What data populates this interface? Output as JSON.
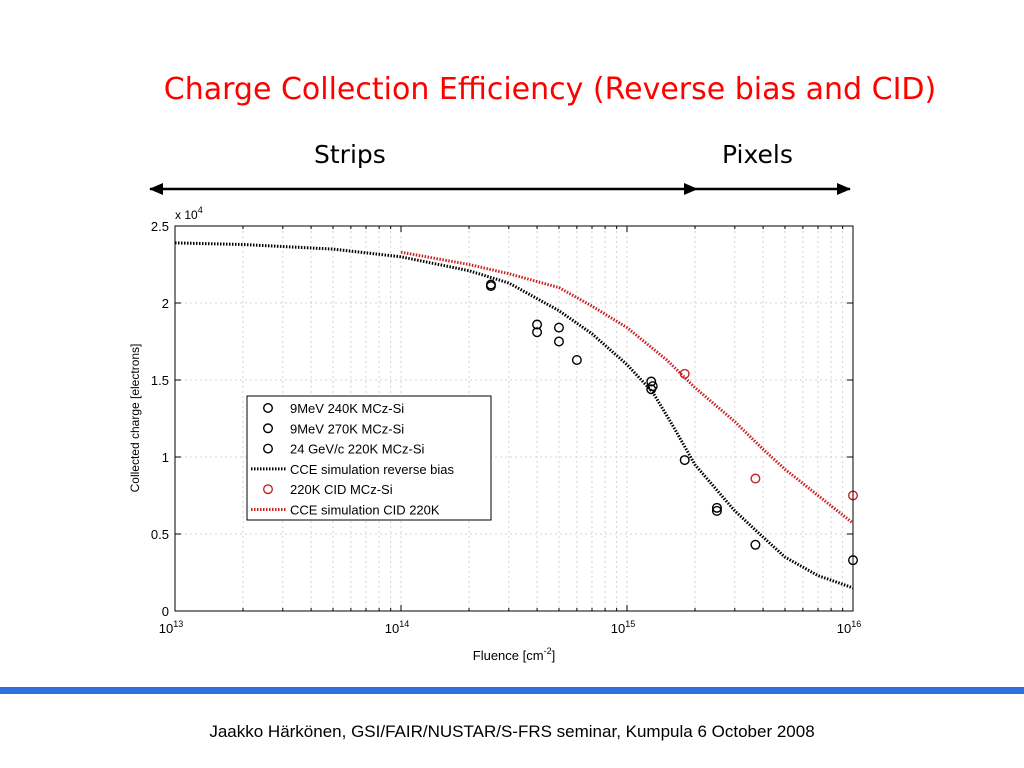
{
  "slide": {
    "title": "Charge Collection Efficiency (Reverse bias and CID)",
    "range_left": "Strips",
    "range_right": "Pixels",
    "footer": "Jaakko Härkönen, GSI/FAIR/NUSTAR/S-FRS seminar, Kumpula 6 October 2008",
    "accent_color": "#2f6fe0"
  },
  "chart_data": {
    "type": "scatter",
    "title": "",
    "xlabel_base": "Fluence [cm",
    "xlabel_sup": "-2",
    "xlabel_end": "]",
    "ylabel": "Collected charge [electrons]",
    "x_scale": "log",
    "xlim": [
      10000000000000.0,
      1e+16
    ],
    "ylim": [
      0,
      25000
    ],
    "y_multiplier_base": "x 10",
    "y_multiplier_exp": "4",
    "y_ticks": [
      0,
      5000,
      10000,
      15000,
      20000,
      25000
    ],
    "y_tick_labels": [
      "0",
      "0.5",
      "1",
      "1.5",
      "2",
      "2.5"
    ],
    "x_ticks": [
      10000000000000.0,
      100000000000000.0,
      1000000000000000.0,
      1e+16
    ],
    "x_tick_base": "10",
    "x_tick_exps": [
      "13",
      "14",
      "15",
      "16"
    ],
    "grid": true,
    "legend_position": "lower-left",
    "series": [
      {
        "name": "9MeV 240K MCz-Si",
        "kind": "points",
        "color": "#000000",
        "x": [
          250000000000000.0,
          400000000000000.0,
          500000000000000.0,
          1280000000000000.0,
          1800000000000000.0,
          2500000000000000.0,
          3700000000000000.0,
          1e+16
        ],
        "y": [
          21100,
          18100,
          17500,
          14400,
          9800,
          6500,
          4300,
          3300
        ]
      },
      {
        "name": "9MeV 270K MCz-Si",
        "kind": "points",
        "color": "#000000",
        "x": [
          400000000000000.0,
          500000000000000.0,
          600000000000000.0,
          1280000000000000.0,
          2500000000000000.0
        ],
        "y": [
          18600,
          18400,
          16300,
          14900,
          6700
        ]
      },
      {
        "name": "24 GeV/c 220K MCz-Si",
        "kind": "points",
        "color": "#000000",
        "x": [
          250000000000000.0,
          1300000000000000.0
        ],
        "y": [
          21200,
          14600
        ]
      },
      {
        "name": "CCE simulation reverse bias",
        "kind": "line",
        "color": "#000000",
        "x": [
          10000000000000.0,
          20000000000000.0,
          50000000000000.0,
          100000000000000.0,
          200000000000000.0,
          300000000000000.0,
          500000000000000.0,
          700000000000000.0,
          1000000000000000.0,
          1300000000000000.0,
          1600000000000000.0,
          2000000000000000.0,
          3000000000000000.0,
          4000000000000000.0,
          5000000000000000.0,
          7000000000000000.0,
          1e+16
        ],
        "y": [
          23900,
          23800,
          23500,
          23000,
          22100,
          21300,
          19500,
          18000,
          16000,
          14200,
          12000,
          9500,
          6500,
          4800,
          3500,
          2300,
          1500
        ]
      },
      {
        "name": "220K CID MCz-Si",
        "kind": "points",
        "color": "#cc2020",
        "x": [
          1800000000000000.0,
          3700000000000000.0,
          1e+16
        ],
        "y": [
          15400,
          8600,
          7500
        ]
      },
      {
        "name": "CCE simulation CID 220K",
        "kind": "line",
        "color": "#cc2020",
        "x": [
          100000000000000.0,
          200000000000000.0,
          300000000000000.0,
          500000000000000.0,
          700000000000000.0,
          1000000000000000.0,
          1500000000000000.0,
          2000000000000000.0,
          3000000000000000.0,
          4000000000000000.0,
          5000000000000000.0,
          7000000000000000.0,
          1e+16
        ],
        "y": [
          23300,
          22500,
          21900,
          21000,
          19800,
          18400,
          16300,
          14500,
          12300,
          10500,
          9200,
          7500,
          5700
        ]
      }
    ]
  }
}
